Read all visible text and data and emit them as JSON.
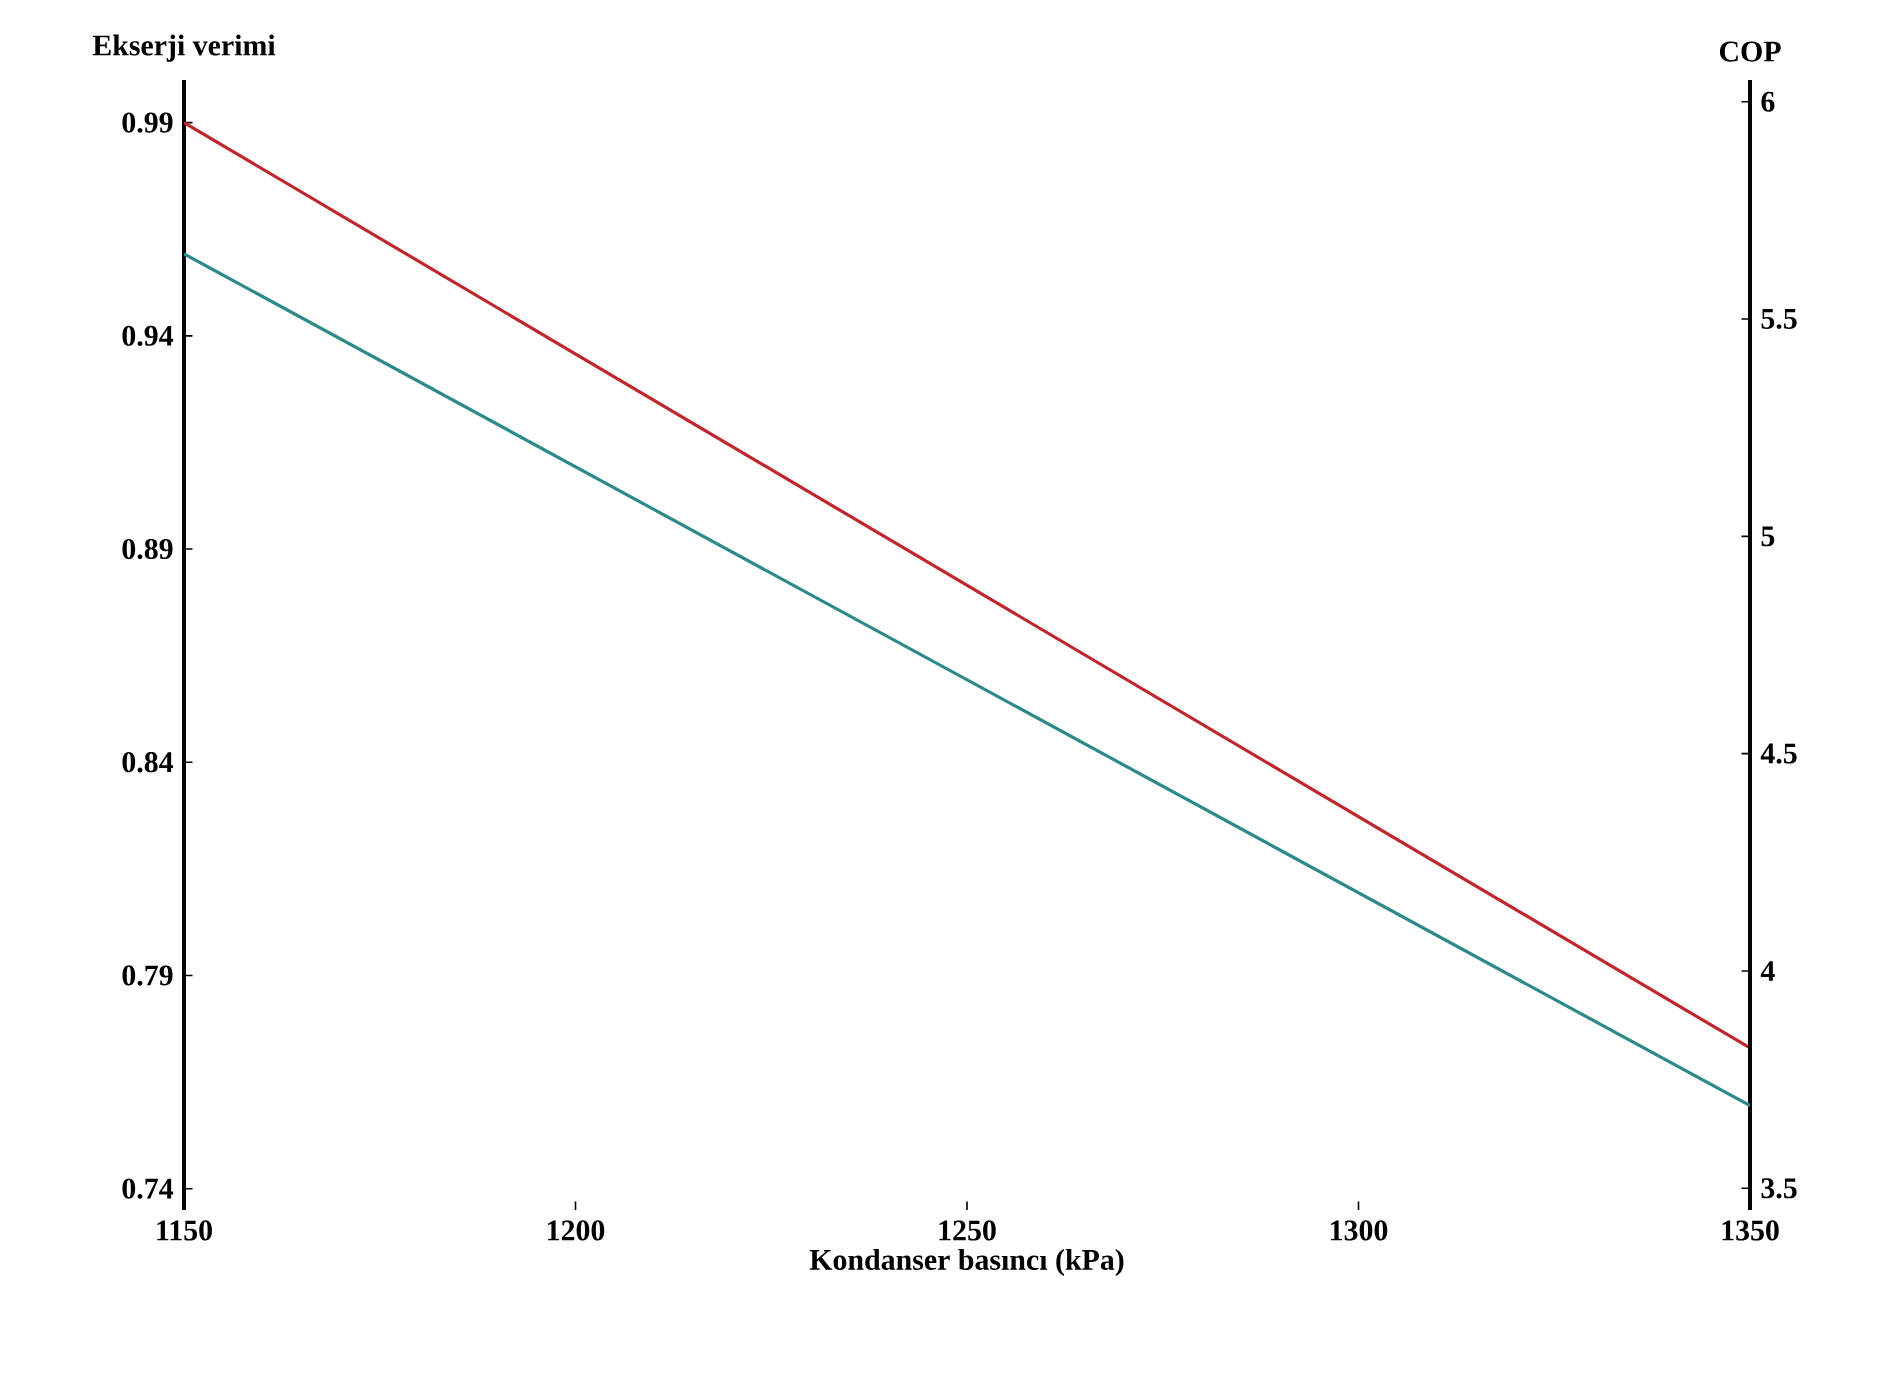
{
  "chart_data": {
    "type": "line",
    "xlabel": "Kondanser basıncı (kPa)",
    "ylabel": "Ekserji verimi",
    "y2label": "COP",
    "x": [
      1150,
      1350
    ],
    "series": [
      {
        "color": "#c0272d",
        "values": [
          0.99,
          0.773
        ]
      },
      {
        "color": "#2e8a8a",
        "values": [
          5.65,
          3.69
        ],
        "axis": "y2"
      }
    ],
    "xlim": [
      1150,
      1350
    ],
    "xticks": [
      1150,
      1200,
      1250,
      1300,
      1350
    ],
    "ylim": [
      0.735,
      1.0
    ],
    "yticks": [
      0.74,
      0.79,
      0.84,
      0.89,
      0.94,
      0.99
    ],
    "y2lim": [
      3.45,
      6.05
    ],
    "y2ticks": [
      3.5,
      4,
      4.5,
      5,
      5.5,
      6
    ],
    "marker": "none",
    "line_style": "solid"
  }
}
